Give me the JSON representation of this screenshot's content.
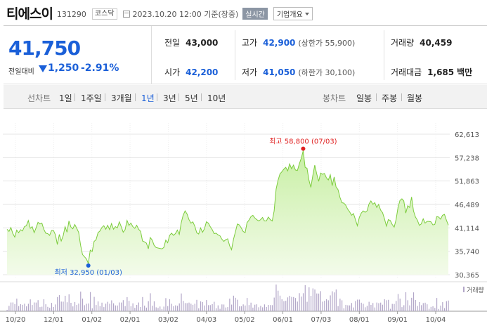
{
  "header": {
    "title": "티에스이",
    "code": "131290",
    "market": "코스닥",
    "datetime": "2023.10.20 12:00  기준(장중)",
    "live": "실시간",
    "info_button": "기업개요"
  },
  "quote": {
    "price": "41,750",
    "change_label": "전일대비",
    "change": "1,250",
    "change_pct": "-2.91%",
    "prev_close_label": "전일",
    "prev_close": "43,000",
    "high_label": "고가",
    "high": "42,900",
    "upper_limit": "(상한가 55,900)",
    "volume_label": "거래량",
    "volume": "40,459",
    "open_label": "시가",
    "open": "42,200",
    "low_label": "저가",
    "low": "41,050",
    "lower_limit": "(하한가 30,100)",
    "amount_label": "거래대금",
    "amount": "1,685",
    "amount_unit": "백만"
  },
  "periods": {
    "line_label": "선차트",
    "line_items": [
      "1일",
      "1주일",
      "3개월",
      "1년",
      "3년",
      "5년",
      "10년"
    ],
    "selected": "1년",
    "candle_label": "봉차트",
    "candle_items": [
      "일봉",
      "주봉",
      "월봉"
    ]
  },
  "colors": {
    "accent": "#1a5fd8",
    "line": "#7ccc3c",
    "fill_top": "#c8efa4",
    "fill_bottom": "#f3fbea",
    "high": "#e02020",
    "volume": "#b2a6c8"
  },
  "chart_data": {
    "type": "area",
    "yticks": [
      "62,613",
      "57,238",
      "51,863",
      "46,489",
      "41,114",
      "35,740",
      "30,365"
    ],
    "ylim": [
      30365,
      62613
    ],
    "xticks": [
      "10/20",
      "12/01",
      "01/02",
      "02/01",
      "03/02",
      "04/03",
      "05/02",
      "06/01",
      "07/03",
      "08/01",
      "09/01",
      "10/04"
    ],
    "max_label": "최고 58,800 (07/03)",
    "min_label": "최저 32,950 (01/03)",
    "volume_label": "거래량",
    "values": [
      40800,
      40300,
      41200,
      39800,
      39000,
      40600,
      40000,
      40700,
      40400,
      41400,
      41600,
      42800,
      41000,
      41400,
      40000,
      41100,
      42400,
      42000,
      42200,
      40800,
      39900,
      39800,
      39400,
      40500,
      40500,
      39500,
      37300,
      39600,
      38100,
      39300,
      41400,
      40100,
      42700,
      41300,
      40900,
      41900,
      41000,
      40100,
      37100,
      35000,
      34500,
      34000,
      32950,
      36000,
      35700,
      38000,
      38400,
      40000,
      40400,
      41200,
      41600,
      40800,
      41700,
      40700,
      42100,
      40800,
      41400,
      41100,
      42500,
      41400,
      40100,
      40700,
      42800,
      41700,
      42200,
      41400,
      41000,
      41700,
      40800,
      40300,
      38100,
      37900,
      37600,
      36300,
      38900,
      38300,
      37100,
      36600,
      36500,
      36400,
      36300,
      36600,
      38300,
      37700,
      39400,
      39900,
      39400,
      39800,
      40600,
      39600,
      42300,
      44000,
      45000,
      44300,
      43000,
      42200,
      42500,
      41500,
      40000,
      39700,
      41100,
      40100,
      40900,
      42500,
      42200,
      41400,
      40700,
      39800,
      39900,
      39500,
      39300,
      38500,
      38000,
      38400,
      38600,
      37000,
      36100,
      38500,
      40200,
      42000,
      41800,
      41100,
      40300,
      40000,
      42300,
      42900,
      43700,
      44000,
      43400,
      43000,
      42700,
      43000,
      43500,
      42700,
      42700,
      43600,
      43000,
      42700,
      45000,
      50000,
      52000,
      53500,
      54000,
      54600,
      55000,
      54200,
      55800,
      54700,
      55500,
      54400,
      54300,
      55800,
      57100,
      58800,
      55000,
      54800,
      52000,
      50400,
      53200,
      55500,
      53500,
      51800,
      53700,
      53400,
      53600,
      52600,
      52100,
      53300,
      50800,
      52800,
      50500,
      49900,
      48100,
      46900,
      46800,
      46300,
      45400,
      44800,
      44000,
      44400,
      43000,
      41600,
      43500,
      44500,
      45000,
      44700,
      45000,
      46600,
      47300,
      46500,
      46900,
      45800,
      46500,
      45200,
      44600,
      43200,
      41500,
      43000,
      42800,
      41900,
      41300,
      43000,
      45800,
      47400,
      47800,
      47300,
      44500,
      46200,
      45800,
      48200,
      45000,
      43600,
      42900,
      41700,
      42000,
      43200,
      42200,
      42600,
      42600,
      42500,
      41800,
      41900,
      43700,
      43600,
      43100,
      44000,
      44200,
      42900,
      41750
    ]
  }
}
